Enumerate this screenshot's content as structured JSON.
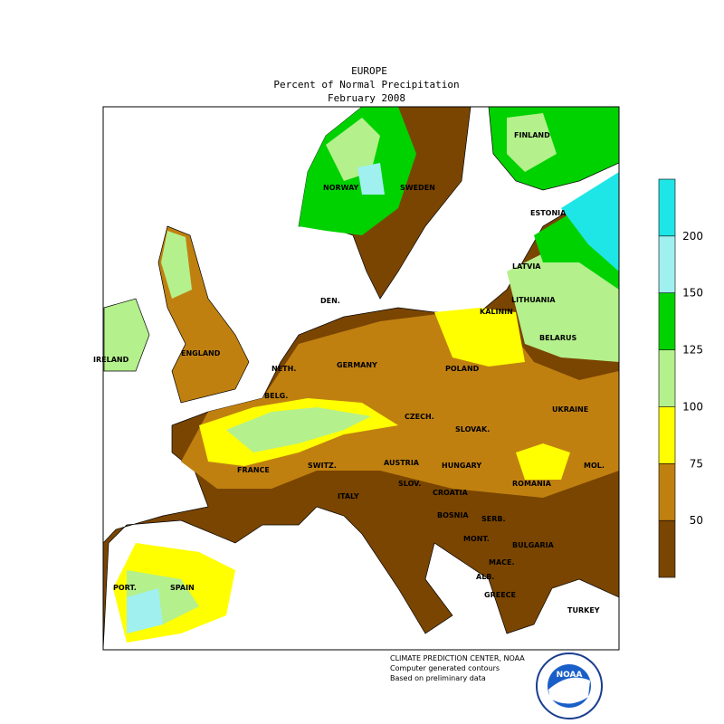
{
  "title": "EUROPE",
  "subtitle": "Percent of Normal Precipitation",
  "date": "February 2008",
  "labels": [
    "NORWAY",
    "SWEDEN",
    "FINLAND",
    "ESTONIA",
    "LATVIA",
    "LITHUANIA",
    "BELARUS",
    "KALININ",
    "DEN.",
    "ENGLAND",
    "IRELAND",
    "NETH.",
    "GERMANY",
    "POLAND",
    "BELG.",
    "CZECH.",
    "SLOVAK.",
    "UKRAINE",
    "FRANCE",
    "SWITZ.",
    "AUSTRIA",
    "HUNGARY",
    "MOL.",
    "ROMANIA",
    "ITALY",
    "SLOV.",
    "CROATIA",
    "BOSNIA",
    "SERB.",
    "MONT.",
    "BULGARIA",
    "MACE.",
    "ALB.",
    "GREECE",
    "TURKEY",
    "PORT.",
    "SPAIN"
  ],
  "legend": {
    "ticks": [
      50,
      75,
      100,
      125,
      150,
      200
    ],
    "colors": [
      "#7a4500",
      "#c08010",
      "#ffff00",
      "#b4f08c",
      "#00d200",
      "#a0f0f0",
      "#1ee6e6"
    ]
  },
  "footer": [
    "CLIMATE PREDICTION CENTER, NOAA",
    "Computer generated contours",
    "Based on preliminary data"
  ],
  "logo": "NOAA"
}
